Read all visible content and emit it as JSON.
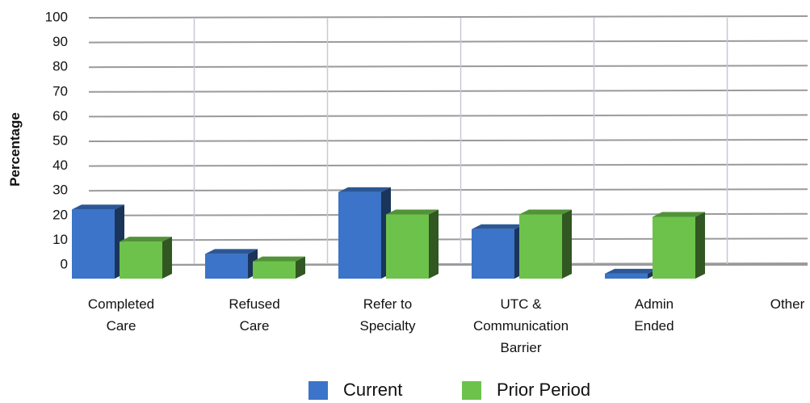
{
  "chart_data": {
    "type": "bar3d",
    "y_label": "Percentage",
    "categories": [
      "Completed Care",
      "Refused Care",
      "Refer to Specialty",
      "UTC & Communication Barrier",
      "Admin Ended",
      "Other"
    ],
    "series": [
      {
        "name": "Current",
        "color": "#3b74c8",
        "values": [
          28,
          10,
          35,
          20,
          2,
          0
        ]
      },
      {
        "name": "Prior Period",
        "color": "#6dc24b",
        "values": [
          15,
          7,
          26,
          26,
          25,
          0
        ]
      }
    ],
    "ylim": [
      0,
      100
    ],
    "yticks": [
      0,
      10,
      20,
      30,
      40,
      50,
      60,
      70,
      80,
      90,
      100
    ],
    "grid": true
  }
}
